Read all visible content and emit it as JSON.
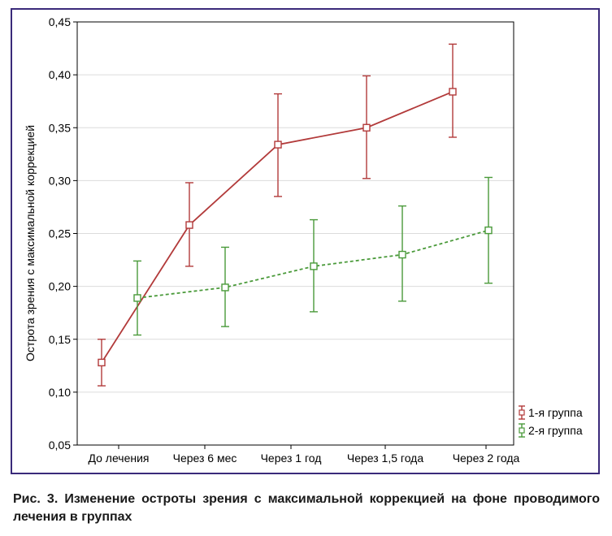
{
  "chart_data": {
    "type": "line",
    "xlabel": "",
    "ylabel": "Острота зрения с максимальной коррекцией",
    "categories": [
      "До лечения",
      "Через 6 мес",
      "Через 1 год",
      "Через 1,5 года",
      "Через 2 года"
    ],
    "ylim": [
      0.05,
      0.45
    ],
    "yticks": [
      "0,05",
      "0,10",
      "0,15",
      "0,20",
      "0,25",
      "0,30",
      "0,35",
      "0,40",
      "0,45"
    ],
    "grid": true,
    "legend_position": "bottom-right",
    "series": [
      {
        "name": "1-я группа",
        "color": "#b23a3a",
        "line_style": "solid",
        "values": [
          0.128,
          0.258,
          0.334,
          0.35,
          0.384
        ],
        "error_low": [
          0.106,
          0.219,
          0.285,
          0.302,
          0.341
        ],
        "error_high": [
          0.15,
          0.298,
          0.382,
          0.399,
          0.429
        ]
      },
      {
        "name": "2-я группа",
        "color": "#4a9a3a",
        "line_style": "dashed",
        "values": [
          0.189,
          0.199,
          0.219,
          0.23,
          0.253
        ],
        "error_low": [
          0.154,
          0.162,
          0.176,
          0.186,
          0.203
        ],
        "error_high": [
          0.224,
          0.237,
          0.263,
          0.276,
          0.303
        ]
      }
    ]
  },
  "caption": "Рис. 3. Изменение остроты зрения с максимальной коррекцией на фоне проводимого лечения в группах"
}
